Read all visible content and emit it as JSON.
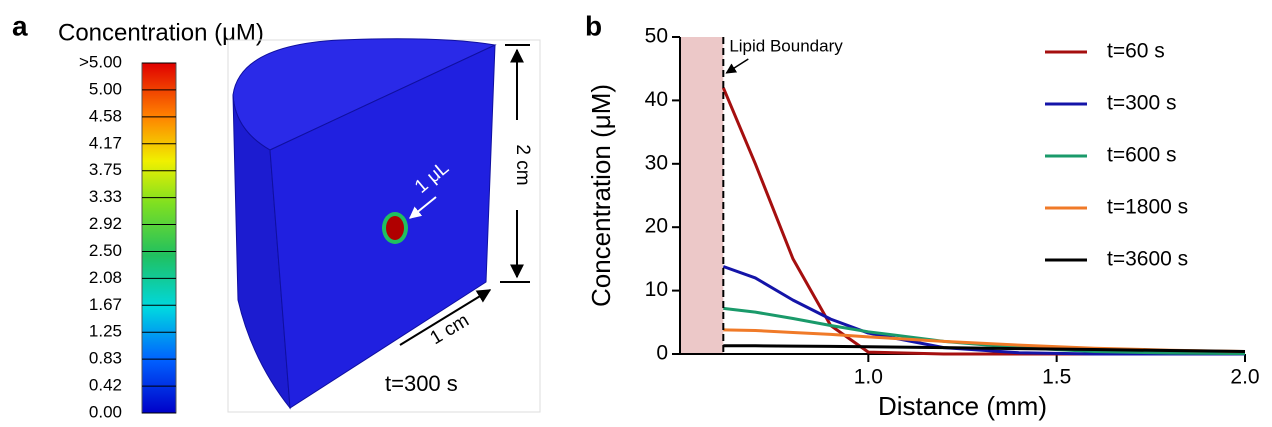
{
  "panel_a": {
    "panel_label": "a",
    "colorbar_title": "Concentration (μM)",
    "colorbar_ticks": [
      ">5.00",
      "5.00",
      "4.58",
      "4.17",
      "3.75",
      "3.33",
      "2.92",
      "2.50",
      "2.08",
      "1.67",
      "1.25",
      "0.83",
      "0.42",
      "0.00"
    ],
    "droplet_label": "1 μL",
    "height_label": "2 cm",
    "radius_label": "1 cm",
    "time_label": "t=300 s"
  },
  "chart_data": {
    "type": "line",
    "panel_label": "b",
    "x_label": "Distance (mm)",
    "y_label": "Concentration (μM)",
    "annotation": "Lipid Boundary",
    "boundary": 0.615,
    "boundary_color": "#ecc8c8",
    "x": [
      0.615,
      0.7,
      0.8,
      0.9,
      1.0,
      1.2,
      1.4,
      1.6,
      1.8,
      2.0
    ],
    "series": [
      {
        "name": "t=60 s",
        "color": "#a50f0f",
        "values": [
          42,
          30,
          15,
          4.5,
          0.3,
          0,
          0,
          0,
          0,
          0
        ]
      },
      {
        "name": "t=300 s",
        "color": "#1414a8",
        "values": [
          13.8,
          12,
          8.5,
          5.5,
          3.3,
          1.0,
          0.2,
          0,
          0,
          0
        ]
      },
      {
        "name": "t=600 s",
        "color": "#1a9a6a",
        "values": [
          7.2,
          6.6,
          5.6,
          4.5,
          3.5,
          2.0,
          1.0,
          0.4,
          0.15,
          0.05
        ]
      },
      {
        "name": "t=1800 s",
        "color": "#f07a28",
        "values": [
          3.8,
          3.7,
          3.4,
          3.1,
          2.7,
          2.0,
          1.4,
          0.9,
          0.6,
          0.4
        ]
      },
      {
        "name": "t=3600 s",
        "color": "#000000",
        "values": [
          1.3,
          1.3,
          1.25,
          1.2,
          1.15,
          1.0,
          0.85,
          0.7,
          0.55,
          0.4
        ]
      }
    ],
    "xlim": [
      0.5,
      2.0
    ],
    "xticks": [
      {
        "value": 1.0,
        "label": "1.0"
      },
      {
        "value": 1.5,
        "label": "1.5"
      },
      {
        "value": 2.0,
        "label": "2.0"
      }
    ],
    "ylim": [
      0,
      50
    ],
    "yticks": [
      0,
      10,
      20,
      30,
      40,
      50
    ],
    "legend": "upper right"
  }
}
